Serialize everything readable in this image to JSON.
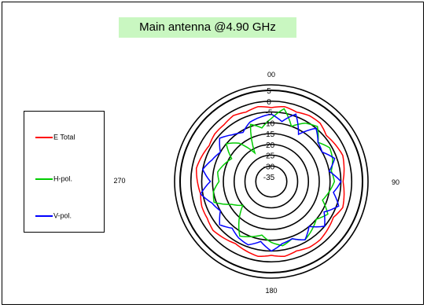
{
  "title": "Main antenna @4.90 GHz",
  "chart_data": {
    "type": "polar-line",
    "title": "Main antenna @4.90 GHz",
    "angle_labels": [
      "00",
      "90",
      "180",
      "270"
    ],
    "radial_labels": [
      "5",
      "0",
      "-5",
      "-10",
      "-15",
      "-20",
      "-25",
      "-30",
      "-35"
    ],
    "radial_range": [
      -35,
      5
    ],
    "angle_unit": "deg",
    "angle_step": 10,
    "legend_position": "left",
    "series": [
      {
        "name": "E Total",
        "color": "#ff0000",
        "values": [
          -3,
          -2,
          -3,
          -2,
          -2,
          -4,
          -3,
          -2,
          -3,
          -4,
          -3,
          -2,
          -4,
          -3,
          -2,
          -2,
          -3,
          -2,
          -3,
          -2,
          -3,
          -4,
          -3,
          -2,
          -3,
          -3,
          -4,
          -3,
          -2,
          -3,
          -4,
          -3,
          -3,
          -2,
          -3,
          -2
        ]
      },
      {
        "name": "H-pol.",
        "color": "#00cc00",
        "values": [
          -8,
          -3,
          -10,
          -6,
          -4,
          -9,
          -6,
          -7,
          -9,
          -8,
          -10,
          -12,
          -7,
          -10,
          -8,
          -6,
          -9,
          -7,
          -9,
          -12,
          -10,
          -8,
          -14,
          -20,
          -16,
          -9,
          -10,
          -13,
          -12,
          -14,
          -16,
          -10,
          -14,
          -22,
          -9,
          -12
        ]
      },
      {
        "name": "V-pol.",
        "color": "#0000ff",
        "values": [
          -6,
          -9,
          -4,
          -12,
          -5,
          -9,
          -10,
          -6,
          -10,
          -5,
          -8,
          -4,
          -9,
          -5,
          -10,
          -6,
          -9,
          -8,
          -5,
          -9,
          -6,
          -7,
          -9,
          -6,
          -10,
          -8,
          -4,
          -9,
          -5,
          -8,
          -10,
          -6,
          -9,
          -11,
          -8,
          -7
        ]
      }
    ]
  }
}
